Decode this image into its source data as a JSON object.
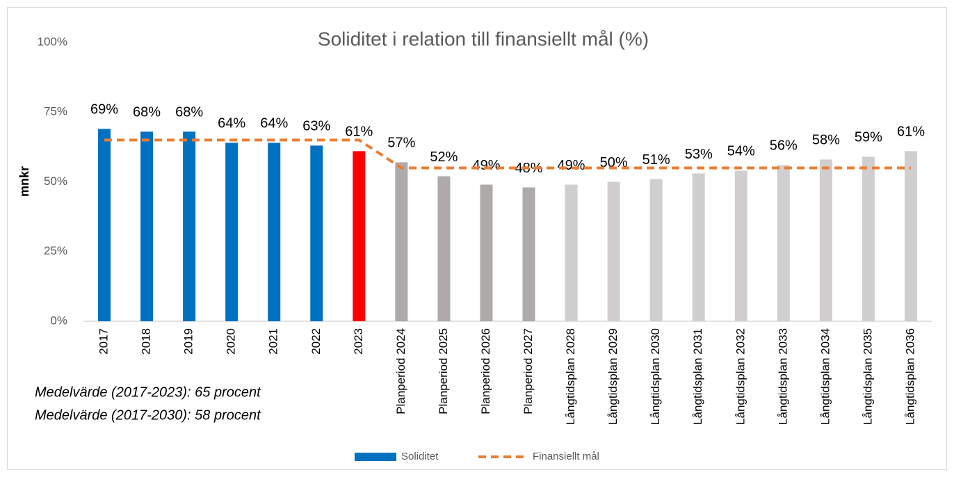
{
  "chart_data": {
    "type": "bar",
    "title": "Soliditet i relation till finansiellt mål (%)",
    "y_label": "mnkr",
    "categories": [
      "2017",
      "2018",
      "2019",
      "2020",
      "2021",
      "2022",
      "2023",
      "Planperiod 2024",
      "Planperiod 2025",
      "Planperiod 2026",
      "Planperiod 2027",
      "Långtidsplan 2028",
      "Långtidsplan 2029",
      "Långtidsplan 2030",
      "Långtidsplan 2031",
      "Långtidsplan 2032",
      "Långtidsplan 2033",
      "Långtidsplan 2034",
      "Långtidsplan 2035",
      "Långtidsplan 2036"
    ],
    "series": [
      {
        "name": "Soliditet",
        "color": "#0070c0",
        "colors": [
          "#0070c0",
          "#0070c0",
          "#0070c0",
          "#0070c0",
          "#0070c0",
          "#0070c0",
          "#ff0000",
          "#aeaaaa",
          "#aeaaaa",
          "#aeaaaa",
          "#aeaaaa",
          "#d0cece",
          "#d0cece",
          "#d0cece",
          "#d0cece",
          "#d0cece",
          "#d0cece",
          "#d0cece",
          "#d0cece",
          "#d0cece"
        ],
        "values": [
          69,
          68,
          68,
          64,
          64,
          63,
          61,
          57,
          52,
          49,
          48,
          49,
          50,
          51,
          53,
          54,
          56,
          58,
          59,
          61
        ],
        "value_labels": [
          "69%",
          "68%",
          "68%",
          "64%",
          "64%",
          "63%",
          "61%",
          "57%",
          "52%",
          "49%",
          "48%",
          "49%",
          "50%",
          "51%",
          "53%",
          "54%",
          "56%",
          "58%",
          "59%",
          "61%"
        ]
      },
      {
        "name": "Finansiellt mål",
        "color": "#ed7d31",
        "type": "line",
        "dashed": true,
        "values": [
          65,
          65,
          65,
          65,
          65,
          65,
          65,
          55,
          55,
          55,
          55,
          55,
          55,
          55,
          55,
          55,
          55,
          55,
          55,
          55
        ]
      }
    ],
    "ylim": [
      0,
      100
    ],
    "yticks": [
      {
        "value": 0,
        "label": "0%"
      },
      {
        "value": 25,
        "label": "25%"
      },
      {
        "value": 50,
        "label": "50%"
      },
      {
        "value": 75,
        "label": "75%"
      },
      {
        "value": 100,
        "label": "100%"
      }
    ],
    "annotations": [
      "Medelvärde (2017-2023): 65 procent",
      "Medelvärde (2017-2030): 58 procent"
    ],
    "legend": "bottom"
  }
}
